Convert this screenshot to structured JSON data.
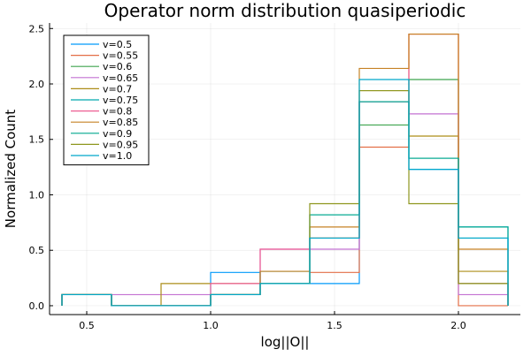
{
  "chart_data": {
    "type": "line",
    "style": "step-histogram",
    "title": "Operator norm distribution quasiperiodic",
    "xlabel": "log||O||",
    "ylabel": "Normalized Count",
    "xlim": [
      0.35,
      2.25
    ],
    "ylim": [
      -0.08,
      2.55
    ],
    "xticks": [
      0.5,
      1.0,
      1.5,
      2.0
    ],
    "xtick_labels": [
      "0.5",
      "1.0",
      "1.5",
      "2.0"
    ],
    "yticks": [
      0.0,
      0.5,
      1.0,
      1.5,
      2.0,
      2.5
    ],
    "ytick_labels": [
      "0.0",
      "0.5",
      "1.0",
      "1.5",
      "2.0",
      "2.5"
    ],
    "grid": true,
    "legend_position": "top-left",
    "bin_edges": [
      0.4,
      0.6,
      0.8,
      1.0,
      1.2,
      1.4,
      1.6,
      1.8,
      2.0,
      2.2
    ],
    "series": [
      {
        "name": "v=0.5",
        "color": "#009AFA",
        "values": [
          0.1,
          0.0,
          0.0,
          0.3,
          0.2,
          0.2,
          1.84,
          1.23,
          0.71
        ]
      },
      {
        "name": "v=0.55",
        "color": "#E36F47",
        "values": [
          0.1,
          0.0,
          0.0,
          0.1,
          0.2,
          0.3,
          1.43,
          2.45,
          0.0
        ]
      },
      {
        "name": "v=0.6",
        "color": "#3EA44E",
        "values": [
          0.1,
          0.0,
          0.0,
          0.1,
          0.2,
          0.61,
          1.63,
          2.04,
          0.2
        ]
      },
      {
        "name": "v=0.65",
        "color": "#C371D2",
        "values": [
          0.1,
          0.1,
          0.1,
          0.1,
          0.51,
          0.51,
          1.84,
          1.73,
          0.1
        ]
      },
      {
        "name": "v=0.7",
        "color": "#AC8D18",
        "values": [
          0.1,
          0.0,
          0.2,
          0.2,
          0.2,
          0.61,
          1.94,
          1.53,
          0.31
        ]
      },
      {
        "name": "v=0.75",
        "color": "#00A9AD",
        "values": [
          0.1,
          0.0,
          0.0,
          0.1,
          0.31,
          0.82,
          1.84,
          1.33,
          0.61
        ]
      },
      {
        "name": "v=0.8",
        "color": "#ED5E93",
        "values": [
          0.1,
          0.0,
          0.0,
          0.2,
          0.51,
          0.61,
          1.84,
          2.45,
          0.2
        ]
      },
      {
        "name": "v=0.85",
        "color": "#C68225",
        "values": [
          0.1,
          0.0,
          0.0,
          0.1,
          0.31,
          0.71,
          2.14,
          2.45,
          0.51
        ]
      },
      {
        "name": "v=0.9",
        "color": "#00A98D",
        "values": [
          0.1,
          0.0,
          0.0,
          0.1,
          0.2,
          0.82,
          1.84,
          1.33,
          0.71
        ]
      },
      {
        "name": "v=0.95",
        "color": "#8E971E",
        "values": [
          0.1,
          0.0,
          0.0,
          0.1,
          0.2,
          0.92,
          1.94,
          0.92,
          0.2
        ]
      },
      {
        "name": "v=1.0",
        "color": "#00A8CB",
        "values": [
          0.1,
          0.0,
          0.0,
          0.1,
          0.2,
          0.61,
          2.04,
          1.23,
          0.61
        ]
      }
    ]
  }
}
